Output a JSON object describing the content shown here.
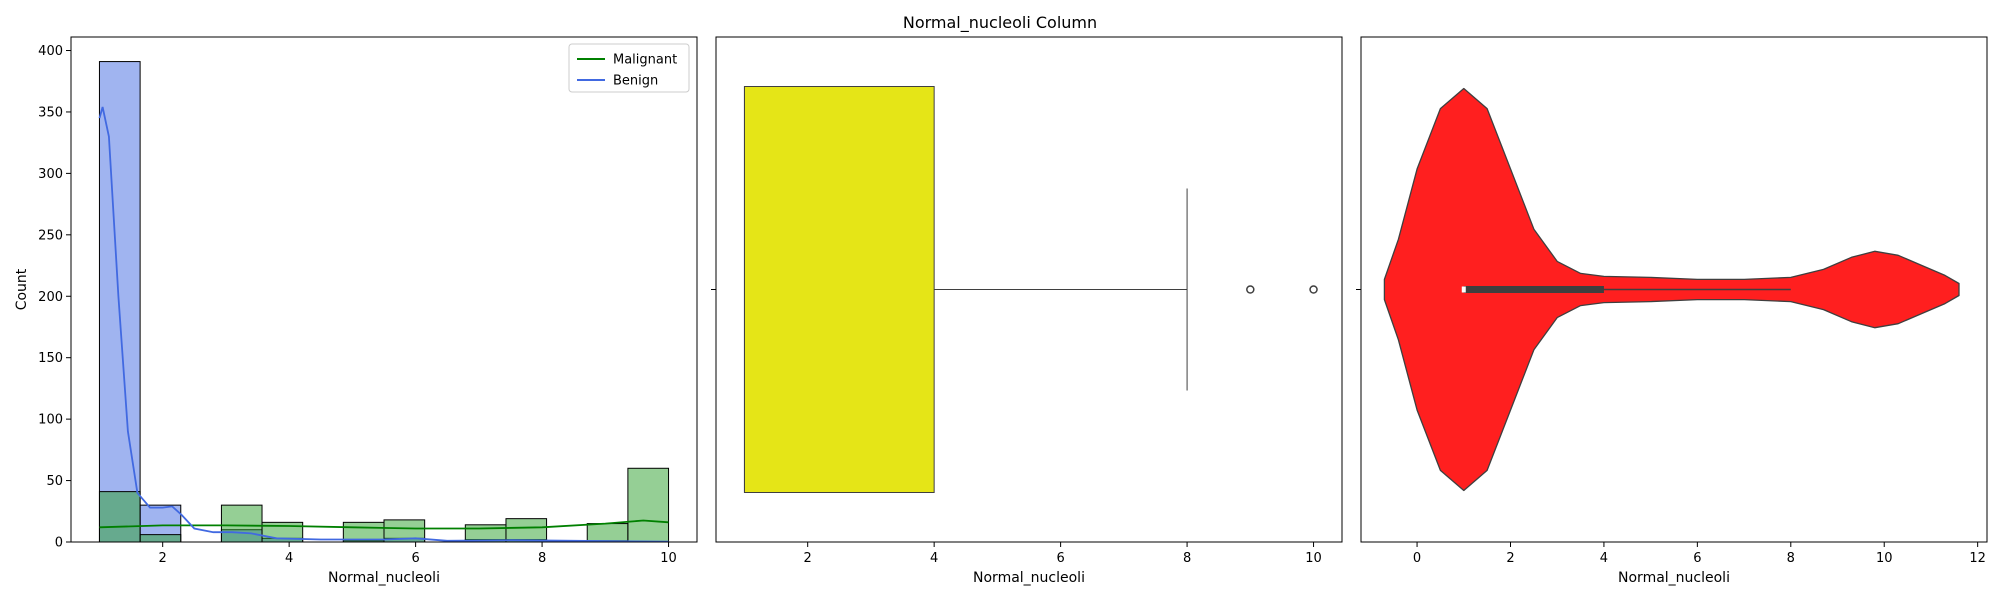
{
  "figure_title": "Normal_nucleoli Column",
  "chart_data": [
    {
      "type": "bar",
      "subtype": "histogram-with-kde",
      "xlabel": "Normal_nucleoli",
      "ylabel": "Count",
      "xlim": [
        0.55,
        10.45
      ],
      "ylim": [
        0,
        411
      ],
      "xticks": [
        2,
        4,
        6,
        8,
        10
      ],
      "yticks": [
        0,
        50,
        100,
        150,
        200,
        250,
        300,
        350,
        400
      ],
      "bin_edges": [
        1.0,
        1.643,
        2.286,
        2.929,
        3.571,
        4.214,
        4.857,
        5.5,
        6.143,
        6.786,
        7.429,
        8.071,
        8.714,
        9.357,
        10.0
      ],
      "series": [
        {
          "name": "Malignant",
          "color": "#2ca02c",
          "line_color": "#008000",
          "counts": [
            41,
            6,
            0,
            30,
            16,
            0,
            16,
            18,
            0,
            14,
            19,
            0,
            15,
            60
          ],
          "kde": [
            [
              1.0,
              12
            ],
            [
              2,
              13.5
            ],
            [
              3,
              13.5
            ],
            [
              4,
              13
            ],
            [
              5,
              12
            ],
            [
              6,
              11
            ],
            [
              7,
              11
            ],
            [
              8,
              12
            ],
            [
              9,
              15
            ],
            [
              9.6,
              17.5
            ],
            [
              10,
              16
            ]
          ]
        },
        {
          "name": "Benign",
          "color": "#4169e1",
          "line_color": "#4169e1",
          "counts": [
            391,
            30,
            0,
            10,
            3,
            0,
            1,
            3,
            0,
            2,
            2,
            0,
            1,
            0
          ],
          "kde": [
            [
              1.0,
              345
            ],
            [
              1.05,
              354
            ],
            [
              1.15,
              330
            ],
            [
              1.3,
              200
            ],
            [
              1.45,
              90
            ],
            [
              1.6,
              40
            ],
            [
              1.8,
              28
            ],
            [
              2.0,
              28
            ],
            [
              2.15,
              29
            ],
            [
              2.3,
              22
            ],
            [
              2.5,
              11
            ],
            [
              2.8,
              8
            ],
            [
              3.1,
              8
            ],
            [
              3.4,
              7
            ],
            [
              3.8,
              3
            ],
            [
              4.5,
              2
            ],
            [
              5.5,
              2
            ],
            [
              6.0,
              3
            ],
            [
              6.5,
              1
            ],
            [
              7.5,
              1.5
            ],
            [
              8.5,
              1
            ],
            [
              9.5,
              0.5
            ],
            [
              10,
              0.3
            ]
          ]
        }
      ],
      "legend": {
        "position": "upper-right",
        "entries": [
          "Malignant",
          "Benign"
        ]
      },
      "grid": false
    },
    {
      "type": "boxplot",
      "xlabel": "Normal_nucleoli",
      "xlim": [
        0.55,
        10.45
      ],
      "xticks": [
        2,
        4,
        6,
        8,
        10
      ],
      "color": "#e5e517",
      "min": 1,
      "q1": 1,
      "median": 1,
      "q3": 4,
      "max": 8,
      "outliers": [
        9,
        10
      ],
      "grid": false
    },
    {
      "type": "violin",
      "xlabel": "Normal_nucleoli",
      "xlim": [
        -1.2,
        12.2
      ],
      "xticks": [
        0,
        2,
        4,
        6,
        8,
        10,
        12
      ],
      "color": "#ff0000",
      "density_profile": [
        [
          -0.7,
          0.05
        ],
        [
          -0.4,
          0.25
        ],
        [
          0,
          0.6
        ],
        [
          0.5,
          0.9
        ],
        [
          1.0,
          1.0
        ],
        [
          1.5,
          0.9
        ],
        [
          2.0,
          0.6
        ],
        [
          2.5,
          0.3
        ],
        [
          3.0,
          0.14
        ],
        [
          3.5,
          0.08
        ],
        [
          4.0,
          0.065
        ],
        [
          5.0,
          0.06
        ],
        [
          6.0,
          0.05
        ],
        [
          7.0,
          0.05
        ],
        [
          8.0,
          0.06
        ],
        [
          8.7,
          0.1
        ],
        [
          9.3,
          0.16
        ],
        [
          9.8,
          0.19
        ],
        [
          10.3,
          0.17
        ],
        [
          10.8,
          0.12
        ],
        [
          11.3,
          0.07
        ],
        [
          11.6,
          0.03
        ]
      ],
      "inner_box": {
        "q1": 1,
        "q3": 4,
        "whisker_low": 1,
        "whisker_high": 8,
        "median": 1
      },
      "grid": false
    }
  ]
}
